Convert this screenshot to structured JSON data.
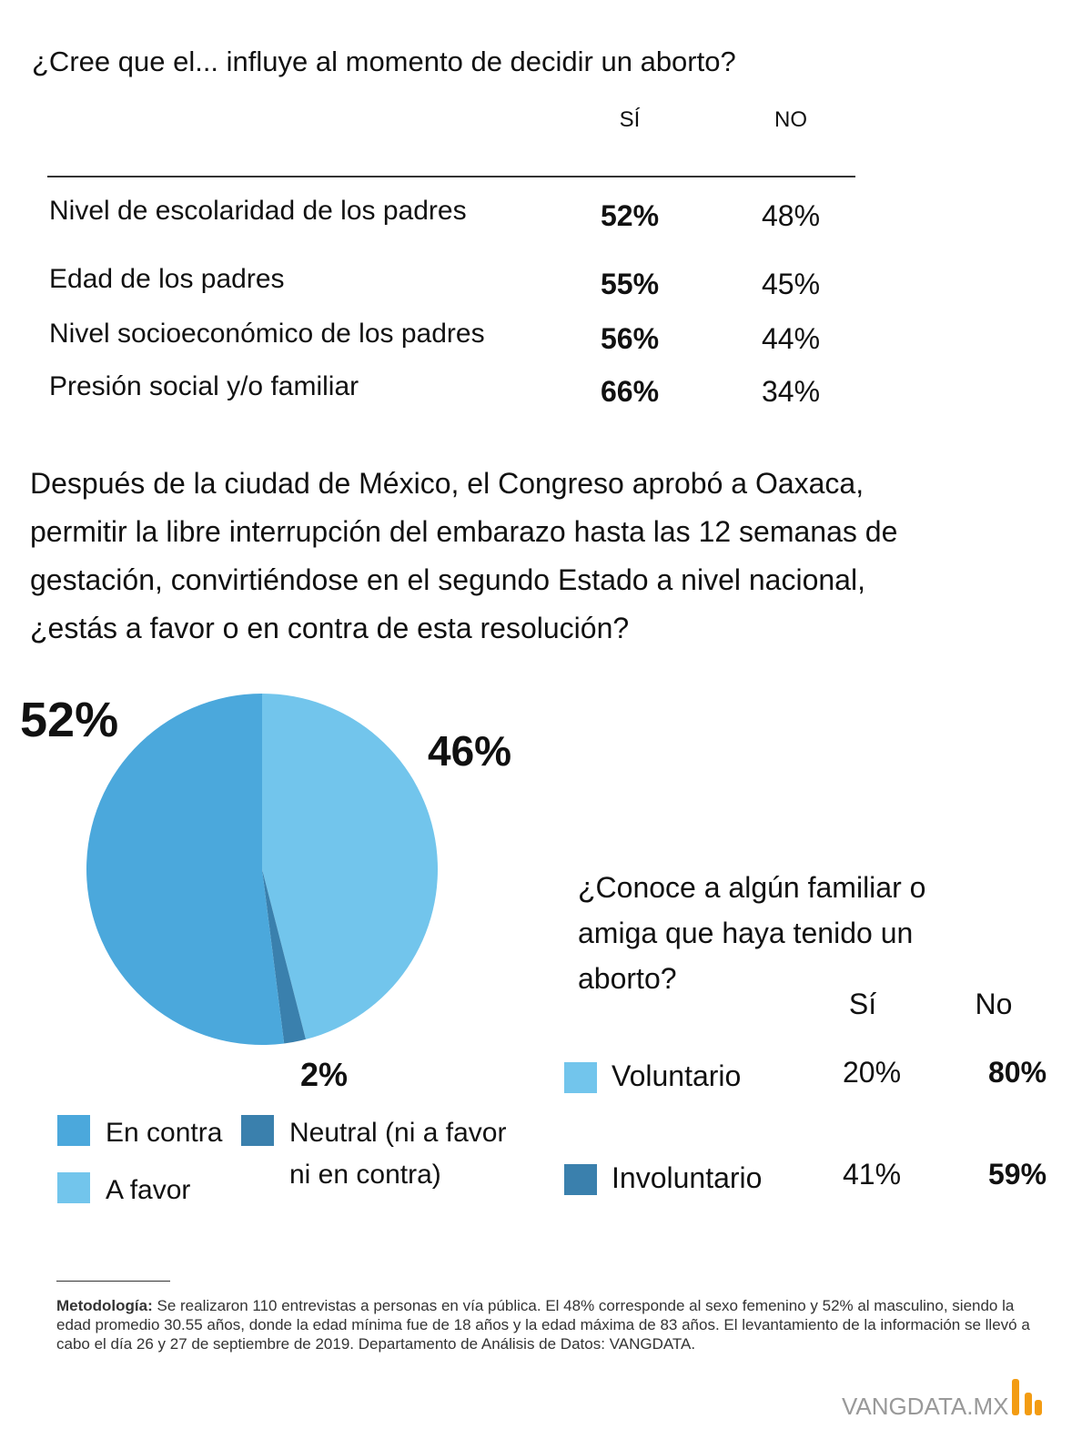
{
  "table1": {
    "title": "¿Cree que el... influye al momento de decidir un aborto?",
    "columns": [
      "SÍ",
      "NO"
    ],
    "rows": [
      {
        "label": "Nivel de escolaridad de los padres",
        "values": [
          "52%",
          "48%"
        ]
      },
      {
        "label": "Edad de los padres",
        "values": [
          "55%",
          "45%"
        ]
      },
      {
        "label": "Nivel socioeconómico de los padres",
        "values": [
          "56%",
          "44%"
        ]
      },
      {
        "label": "Presión social y/o familiar",
        "values": [
          "66%",
          "34%"
        ]
      }
    ]
  },
  "question": "Después de la ciudad de México, el Congreso aprobó a Oaxaca, permitir la libre interrupción del embarazo hasta las 12 semanas de gestación, convirtiéndose en el segundo Estado a nivel nacional, ¿estás a favor o en contra de esta resolución?",
  "chart_data": {
    "type": "pie",
    "categories": [
      "A favor",
      "Neutral (ni a favor ni en contra)",
      "En contra"
    ],
    "values": [
      46,
      2,
      52
    ],
    "value_labels": [
      "46%",
      "2%",
      "52%"
    ],
    "colors": [
      "#72c5ec",
      "#3a80ad",
      "#4ba8dc"
    ]
  },
  "table2": {
    "title": "¿Conoce a algún familiar o amiga que haya tenido un aborto?",
    "columns": [
      "Sí",
      "No"
    ],
    "rows": [
      {
        "label": "Voluntario",
        "color": "#72c5ec",
        "values": [
          "20%",
          "80%"
        ]
      },
      {
        "label": "Involuntario",
        "color": "#3a80ad",
        "values": [
          "41%",
          "59%"
        ]
      }
    ]
  },
  "footer": {
    "label": "Metodología:",
    "text": "Se realizaron 110 entrevistas a personas en vía pública. El 48% corresponde al sexo femenino y 52% al masculino, siendo la edad promedio 30.55 años, donde la edad mínima fue de 18 años y la edad máxima de 83 años. El levantamiento de la información se llevó a cabo el día 26 y 27 de septiembre de 2019. Departamento de Análisis de Datos: VANGDATA.",
    "brand": "VANGDATA.MX"
  }
}
